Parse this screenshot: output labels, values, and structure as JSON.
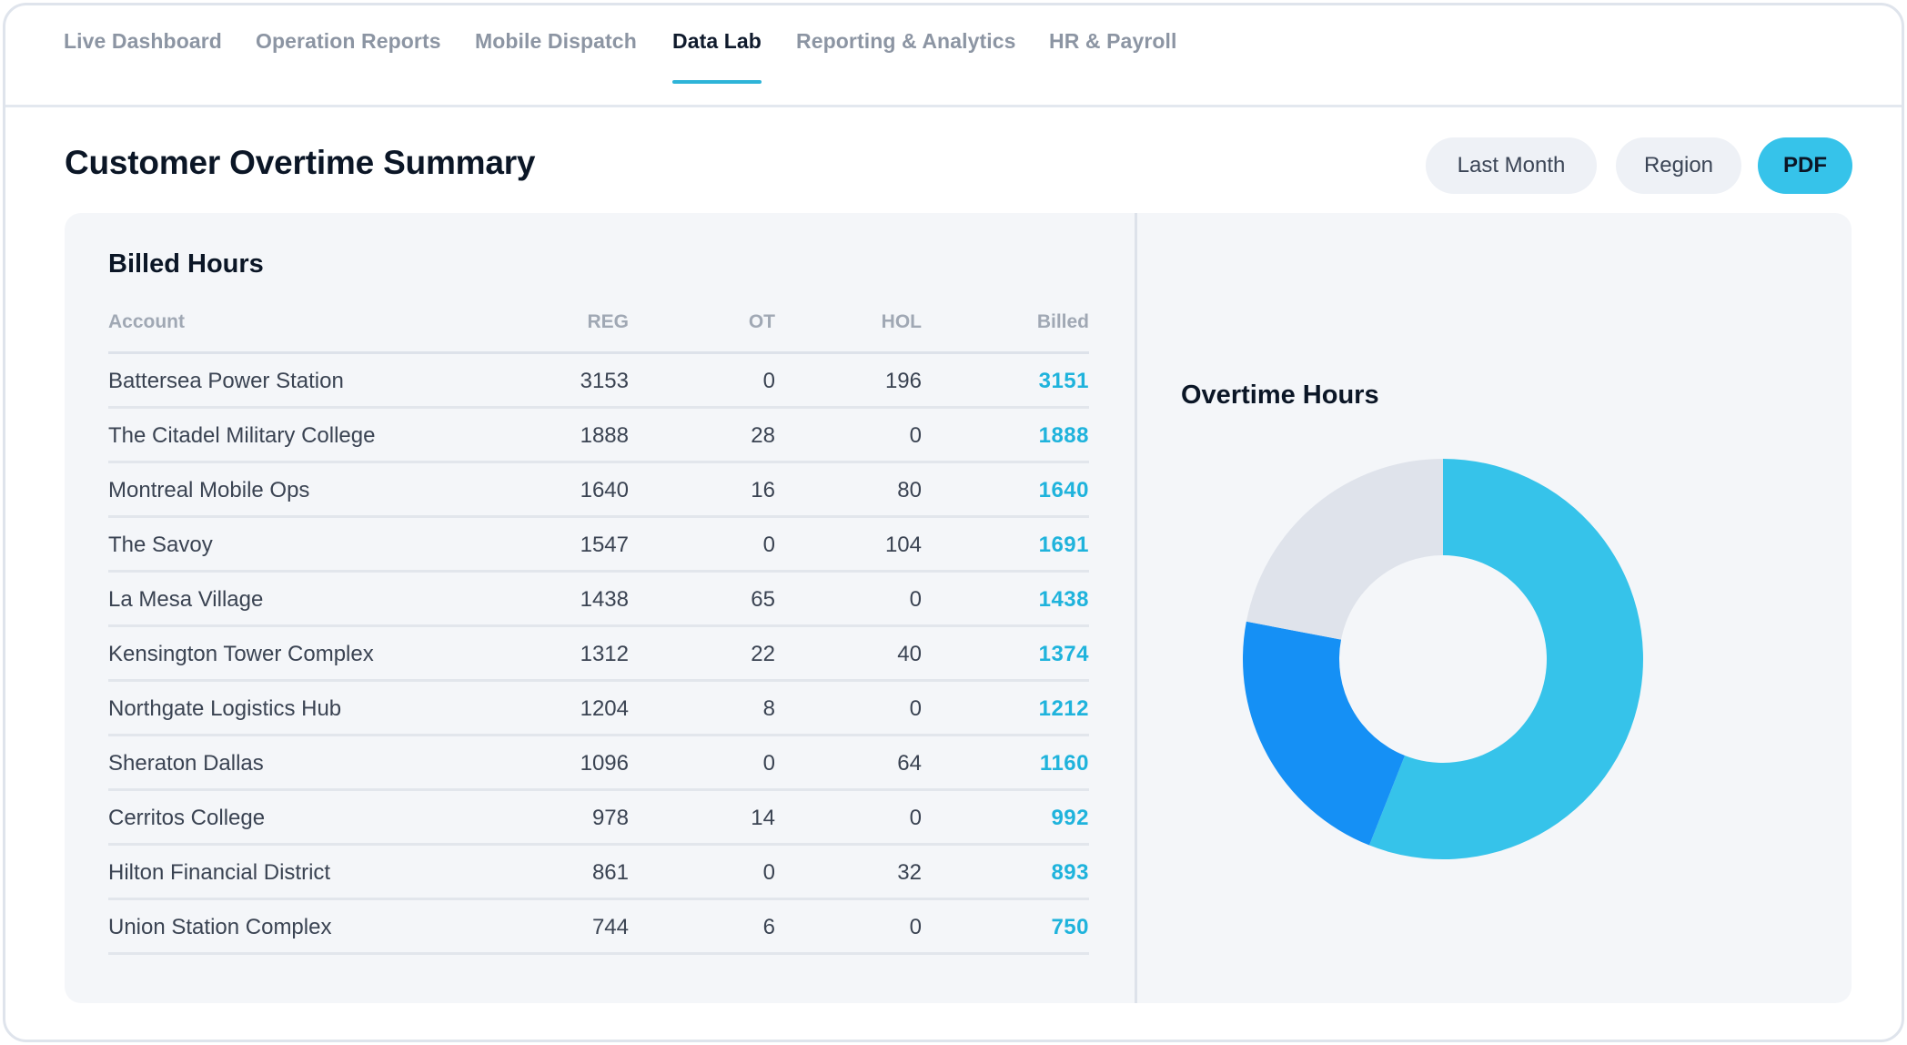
{
  "nav": {
    "tabs": [
      {
        "label": "Live Dashboard",
        "active": false
      },
      {
        "label": "Operation Reports",
        "active": false
      },
      {
        "label": "Mobile Dispatch",
        "active": false
      },
      {
        "label": "Data Lab",
        "active": true
      },
      {
        "label": "Reporting & Analytics",
        "active": false
      },
      {
        "label": "HR & Payroll",
        "active": false
      }
    ]
  },
  "header": {
    "title": "Customer Overtime Summary",
    "filters": {
      "period": "Last Month",
      "region": "Region"
    },
    "export_label": "PDF"
  },
  "billed_hours": {
    "title": "Billed Hours",
    "columns": {
      "account": "Account",
      "reg": "REG",
      "ot": "OT",
      "hol": "HOL",
      "billed": "Billed"
    },
    "rows": [
      {
        "account": "Battersea Power Station",
        "reg": "3153",
        "ot": "0",
        "hol": "196",
        "billed": "3151"
      },
      {
        "account": "The Citadel Military College",
        "reg": "1888",
        "ot": "28",
        "hol": "0",
        "billed": "1888"
      },
      {
        "account": "Montreal Mobile Ops",
        "reg": "1640",
        "ot": "16",
        "hol": "80",
        "billed": "1640"
      },
      {
        "account": "The Savoy",
        "reg": "1547",
        "ot": "0",
        "hol": "104",
        "billed": "1691"
      },
      {
        "account": "La Mesa Village",
        "reg": "1438",
        "ot": "65",
        "hol": "0",
        "billed": "1438"
      },
      {
        "account": "Kensington Tower Complex",
        "reg": "1312",
        "ot": "22",
        "hol": "40",
        "billed": "1374"
      },
      {
        "account": "Northgate Logistics Hub",
        "reg": "1204",
        "ot": "8",
        "hol": "0",
        "billed": "1212"
      },
      {
        "account": "Sheraton Dallas",
        "reg": "1096",
        "ot": "0",
        "hol": "64",
        "billed": "1160"
      },
      {
        "account": "Cerritos College",
        "reg": "978",
        "ot": "14",
        "hol": "0",
        "billed": "992"
      },
      {
        "account": "Hilton Financial District",
        "reg": "861",
        "ot": "0",
        "hol": "32",
        "billed": "893"
      },
      {
        "account": "Union Station Complex",
        "reg": "744",
        "ot": "6",
        "hol": "0",
        "billed": "750"
      }
    ]
  },
  "chart_data": {
    "type": "pie",
    "title": "Overtime Hours",
    "donut": true,
    "slices": [
      {
        "value": 56,
        "color": "#36c3ea"
      },
      {
        "value": 22,
        "color": "#1590f5"
      },
      {
        "value": 22,
        "color": "#dfe3eb"
      }
    ]
  }
}
